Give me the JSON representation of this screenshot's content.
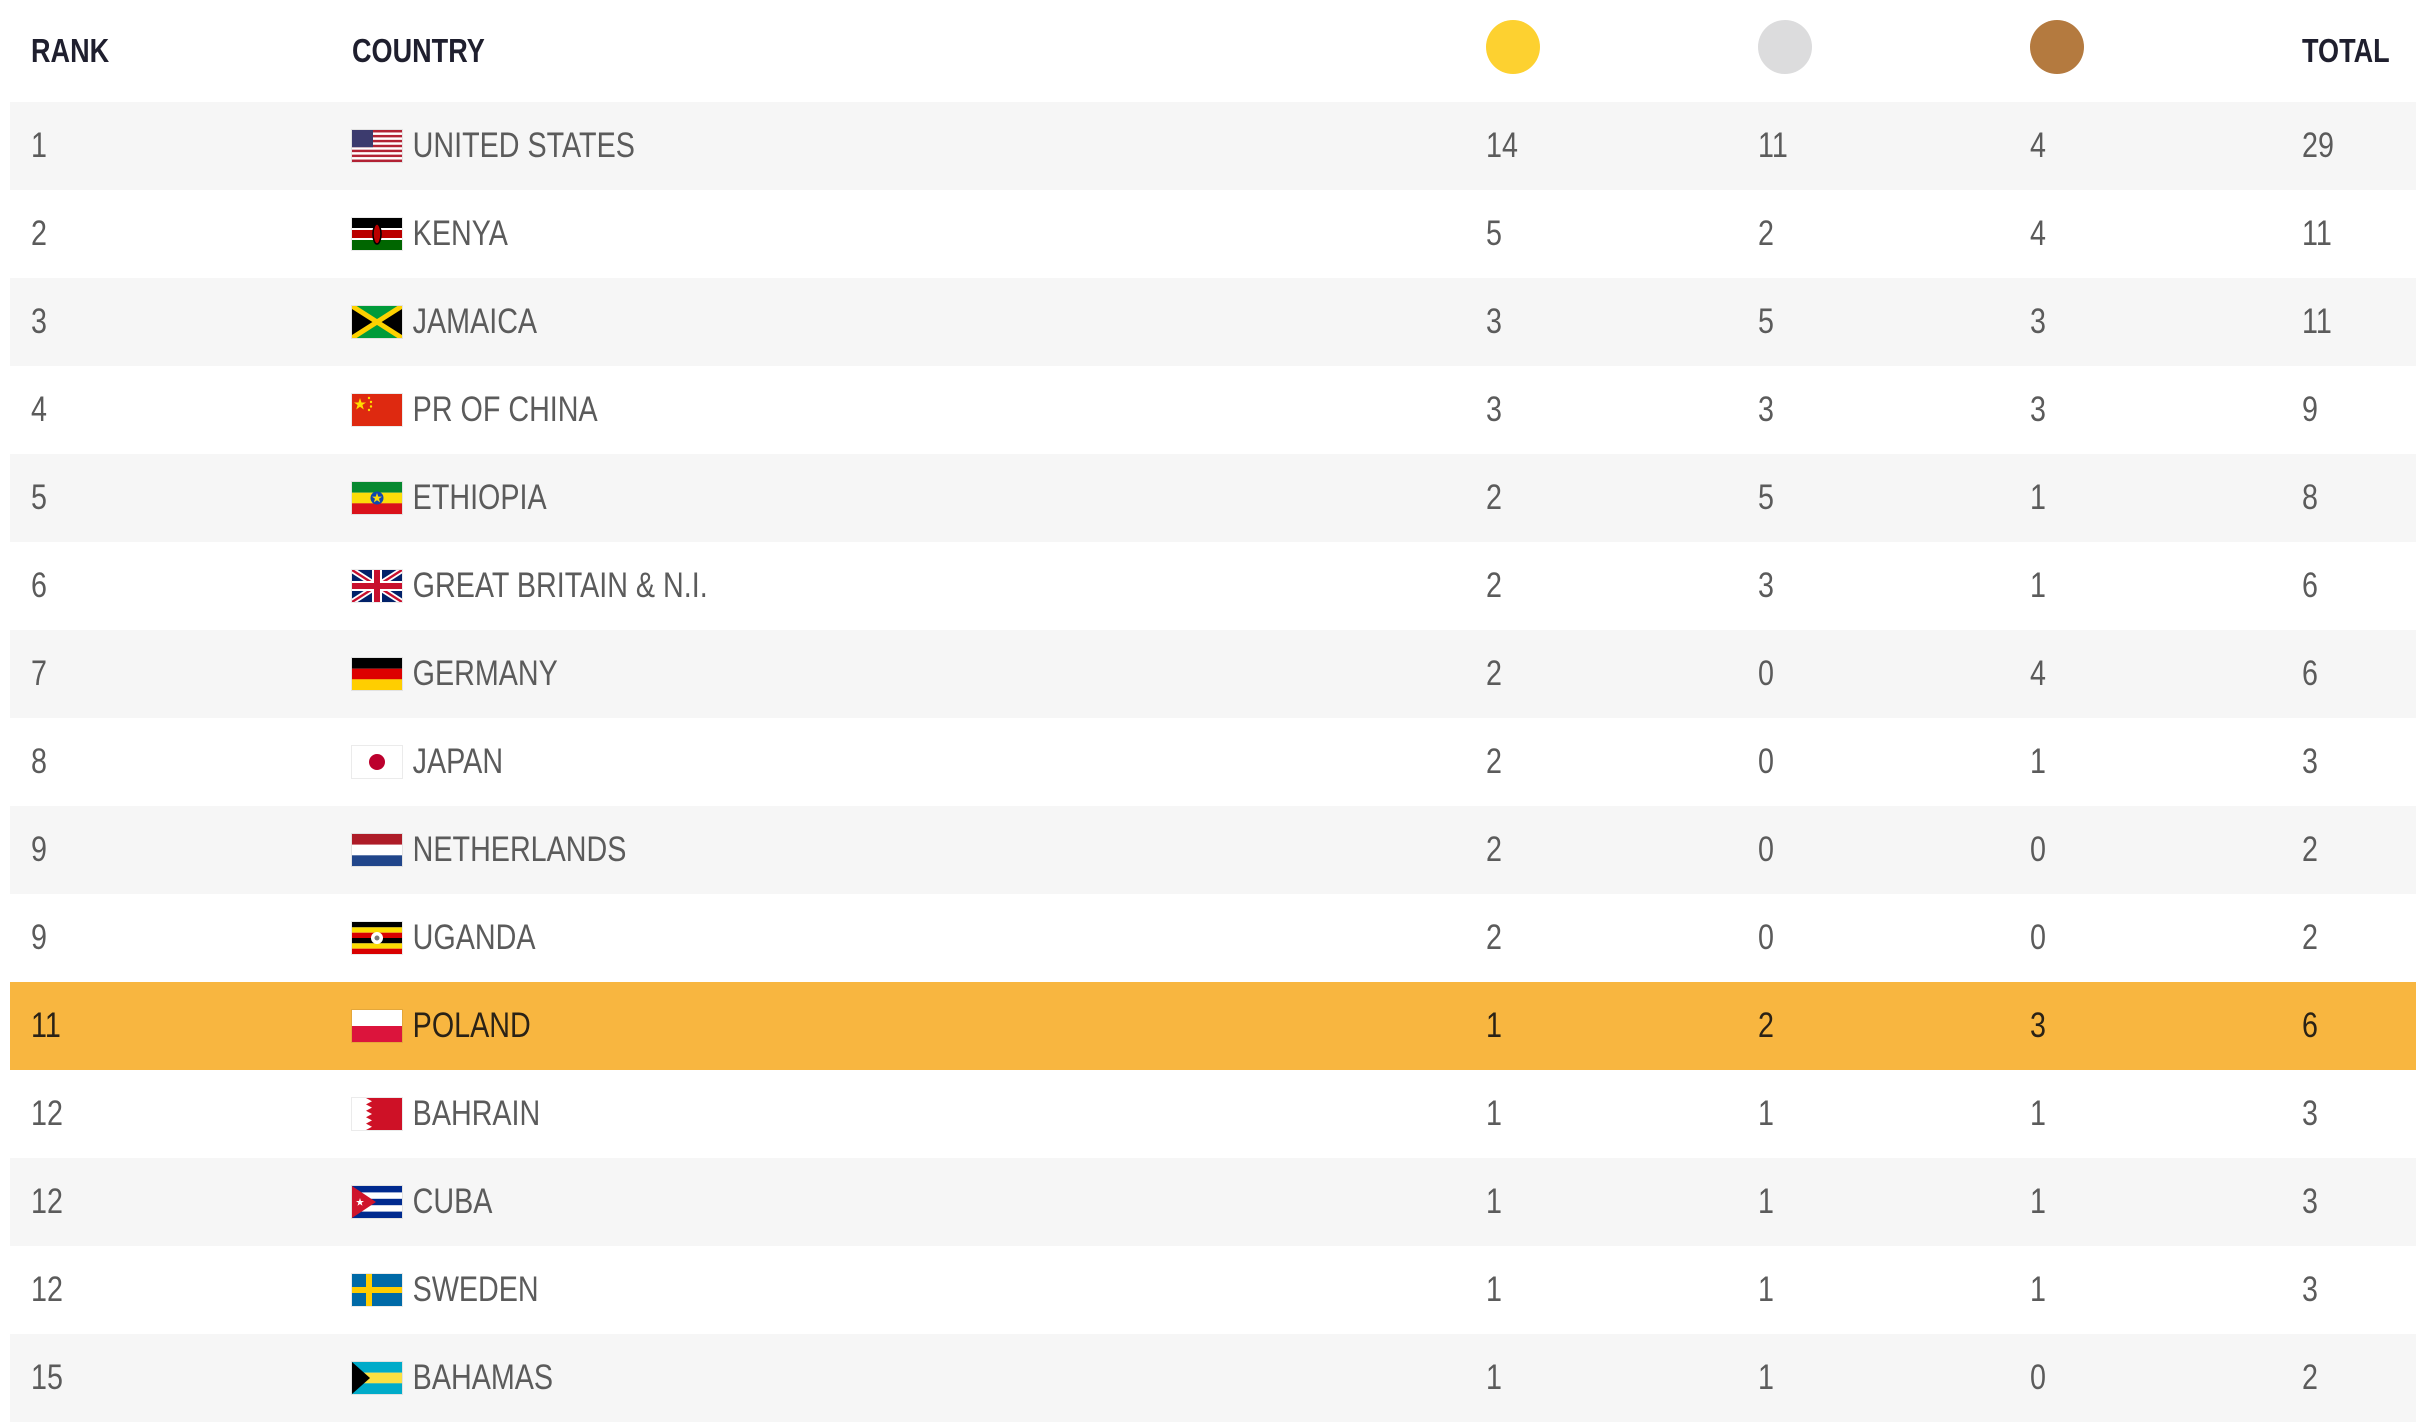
{
  "header": {
    "rank": "RANK",
    "country": "COUNTRY",
    "total": "TOTAL",
    "medal_colors": {
      "gold": "#fdd130",
      "silver": "#dcdcdd",
      "bronze": "#b47a3f"
    }
  },
  "highlight_color": "#f8b640",
  "rows": [
    {
      "rank": "1",
      "country": "UNITED STATES",
      "flag": "flag-usa-icon",
      "gold": "14",
      "silver": "11",
      "bronze": "4",
      "total": "29"
    },
    {
      "rank": "2",
      "country": "KENYA",
      "flag": "flag-kenya-icon",
      "gold": "5",
      "silver": "2",
      "bronze": "4",
      "total": "11"
    },
    {
      "rank": "3",
      "country": "JAMAICA",
      "flag": "flag-jamaica-icon",
      "gold": "3",
      "silver": "5",
      "bronze": "3",
      "total": "11"
    },
    {
      "rank": "4",
      "country": "PR OF CHINA",
      "flag": "flag-china-icon",
      "gold": "3",
      "silver": "3",
      "bronze": "3",
      "total": "9"
    },
    {
      "rank": "5",
      "country": "ETHIOPIA",
      "flag": "flag-ethiopia-icon",
      "gold": "2",
      "silver": "5",
      "bronze": "1",
      "total": "8"
    },
    {
      "rank": "6",
      "country": "GREAT BRITAIN & N.I.",
      "flag": "flag-uk-icon",
      "gold": "2",
      "silver": "3",
      "bronze": "1",
      "total": "6"
    },
    {
      "rank": "7",
      "country": "GERMANY",
      "flag": "flag-germany-icon",
      "gold": "2",
      "silver": "0",
      "bronze": "4",
      "total": "6"
    },
    {
      "rank": "8",
      "country": "JAPAN",
      "flag": "flag-japan-icon",
      "gold": "2",
      "silver": "0",
      "bronze": "1",
      "total": "3"
    },
    {
      "rank": "9",
      "country": "NETHERLANDS",
      "flag": "flag-netherlands-icon",
      "gold": "2",
      "silver": "0",
      "bronze": "0",
      "total": "2"
    },
    {
      "rank": "9",
      "country": "UGANDA",
      "flag": "flag-uganda-icon",
      "gold": "2",
      "silver": "0",
      "bronze": "0",
      "total": "2"
    },
    {
      "rank": "11",
      "country": "POLAND",
      "flag": "flag-poland-icon",
      "gold": "1",
      "silver": "2",
      "bronze": "3",
      "total": "6",
      "highlighted": true
    },
    {
      "rank": "12",
      "country": "BAHRAIN",
      "flag": "flag-bahrain-icon",
      "gold": "1",
      "silver": "1",
      "bronze": "1",
      "total": "3"
    },
    {
      "rank": "12",
      "country": "CUBA",
      "flag": "flag-cuba-icon",
      "gold": "1",
      "silver": "1",
      "bronze": "1",
      "total": "3"
    },
    {
      "rank": "12",
      "country": "SWEDEN",
      "flag": "flag-sweden-icon",
      "gold": "1",
      "silver": "1",
      "bronze": "1",
      "total": "3"
    },
    {
      "rank": "15",
      "country": "BAHAMAS",
      "flag": "flag-bahamas-icon",
      "gold": "1",
      "silver": "1",
      "bronze": "0",
      "total": "2"
    }
  ]
}
